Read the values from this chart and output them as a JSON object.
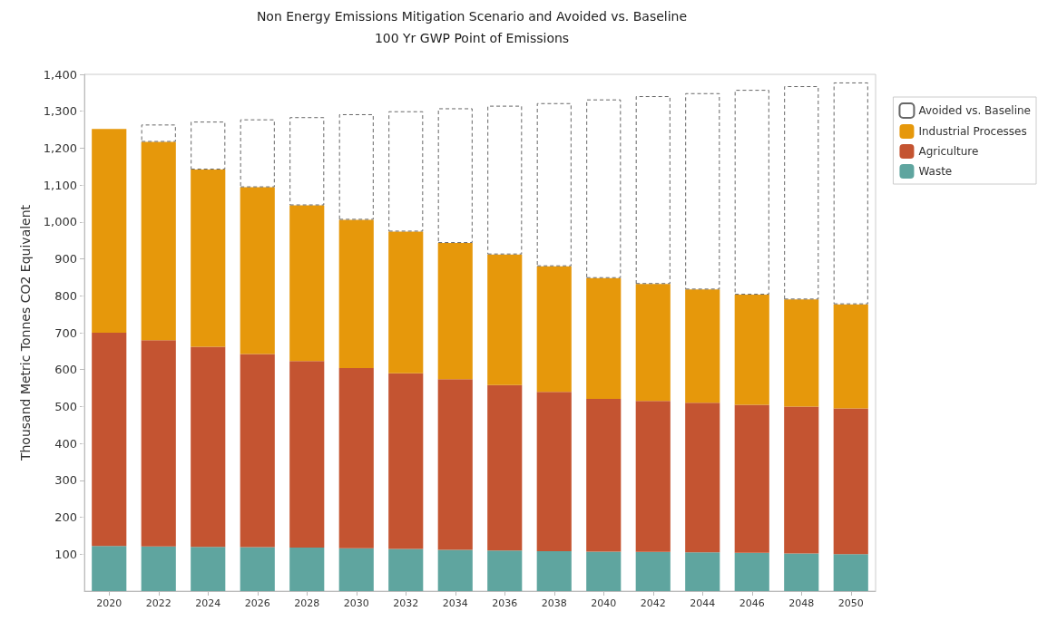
{
  "chart_data": {
    "type": "bar",
    "title": "Non Energy Emissions Mitigation Scenario and Avoided vs. Baseline",
    "subtitle": "100 Yr GWP Point of Emissions",
    "ylabel": "Thousand Metric Tonnes CO2 Equivalent",
    "categories": [
      "2020",
      "2022",
      "2024",
      "2026",
      "2028",
      "2030",
      "2032",
      "2034",
      "2036",
      "2038",
      "2040",
      "2042",
      "2044",
      "2046",
      "2048",
      "2050"
    ],
    "stacked": true,
    "legend": "top right",
    "grid": false,
    "ylim": [
      0,
      1400
    ],
    "yticks": [
      100,
      200,
      300,
      400,
      500,
      600,
      700,
      800,
      900,
      {
        "value": 1000,
        "label": "1,000"
      },
      {
        "value": 1100,
        "label": "1,100"
      },
      {
        "value": 1200,
        "label": "1,200"
      },
      {
        "value": 1300,
        "label": "1,300"
      },
      {
        "value": 1400,
        "label": "1,400"
      }
    ],
    "series": [
      {
        "name": "Waste",
        "color": "#5fa59f",
        "values": [
          122,
          121,
          120,
          119,
          118,
          116,
          114,
          112,
          110,
          108,
          107,
          106,
          105,
          104,
          102,
          100
        ]
      },
      {
        "name": "Agriculture",
        "color": "#c45431",
        "values": [
          578,
          559,
          542,
          523,
          505,
          488,
          476,
          462,
          448,
          432,
          414,
          409,
          405,
          401,
          398,
          395
        ]
      },
      {
        "name": "Industrial Processes",
        "color": "#e6980b",
        "values": [
          552,
          537,
          480,
          452,
          422,
          402,
          384,
          369,
          354,
          340,
          327,
          317,
          307,
          298,
          290,
          282
        ]
      },
      {
        "name": "Avoided vs. Baseline",
        "color": "#ffffff",
        "line_style": "dashed",
        "values": [
          null,
          47,
          130,
          184,
          239,
          286,
          326,
          365,
          403,
          442,
          484,
          509,
          532,
          555,
          578,
          601
        ]
      }
    ]
  }
}
